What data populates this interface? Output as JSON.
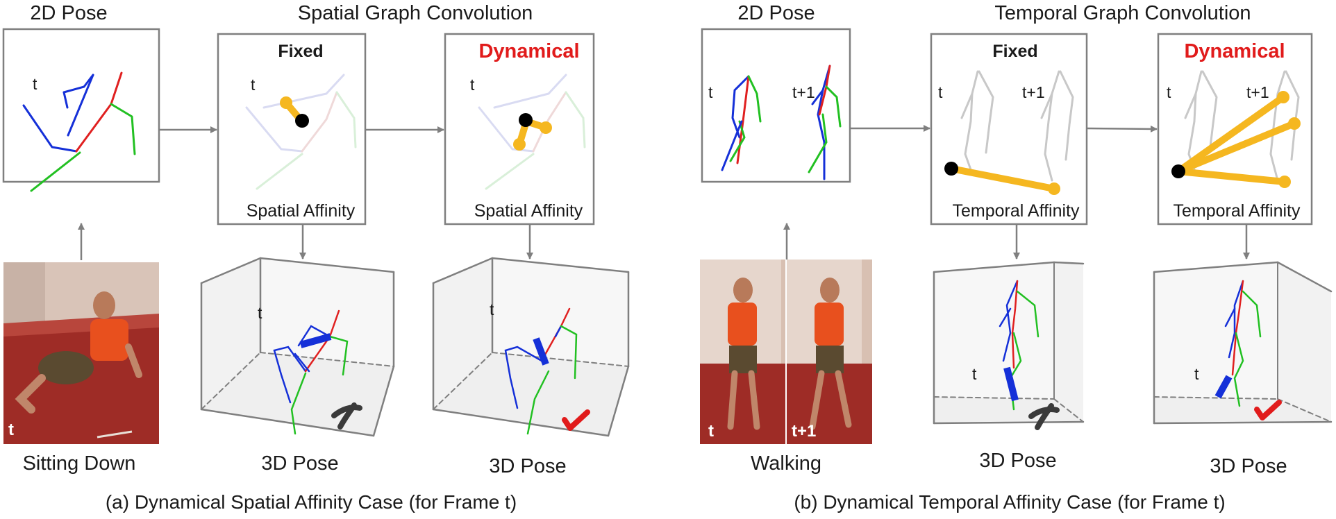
{
  "section_a": {
    "pose2d_title": "2D Pose",
    "spatial_title": "Spatial Graph Convolution",
    "fixed_label": "Fixed",
    "dynamical_label": "Dynamical",
    "affinity_label": "Spatial Affinity",
    "pose3d_label": "3D Pose",
    "action_label": "Sitting Down",
    "frame_label": "t",
    "caption": "(a) Dynamical Spatial Affinity Case (for Frame t)"
  },
  "section_b": {
    "pose2d_title": "2D Pose",
    "temporal_title": "Temporal Graph Convolution",
    "fixed_label": "Fixed",
    "dynamical_label": "Dynamical",
    "affinity_label": "Temporal Affinity",
    "pose3d_label": "3D Pose",
    "action_label": "Walking",
    "frame_label": "t",
    "next_frame_label": "t+1",
    "caption": "(b) Dynamical Temporal Affinity Case (for Frame t)"
  },
  "colors": {
    "accent_red": "#e11b1b",
    "affinity_yellow": "#f5b720",
    "limb_blue": "#1530d8",
    "limb_red": "#e02020",
    "limb_green": "#22c022",
    "photo_floor": "#9e2c26"
  },
  "icons": {
    "wrong": "cross-mark-icon",
    "right": "check-mark-icon"
  }
}
